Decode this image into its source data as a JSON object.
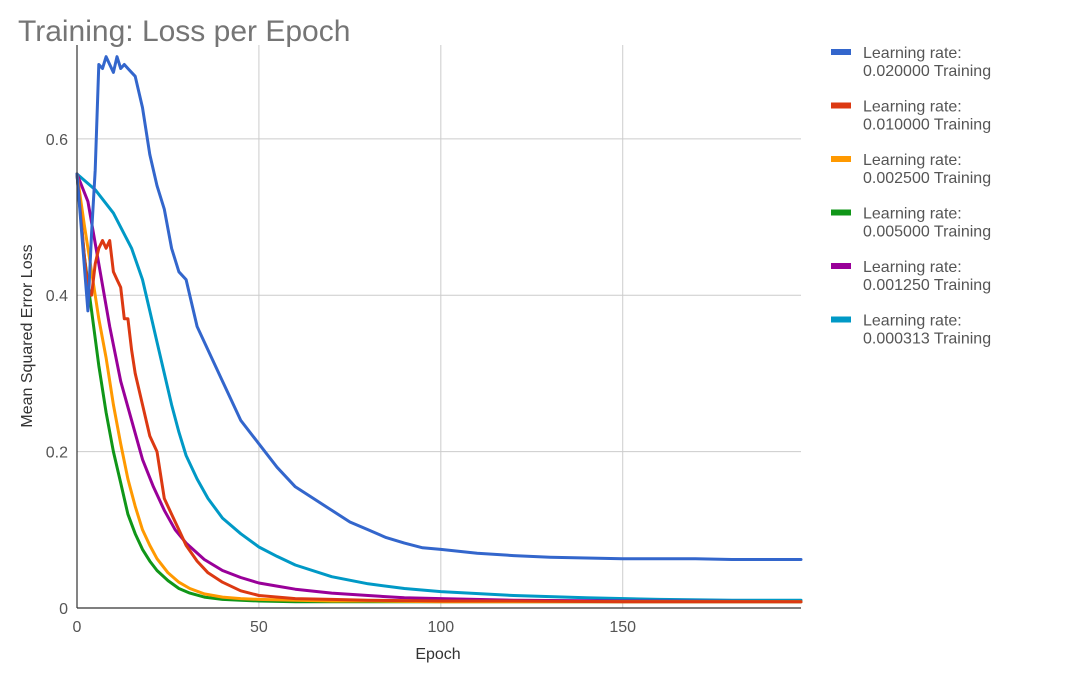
{
  "chart_data": {
    "type": "line",
    "title": "Training: Loss per Epoch",
    "xlabel": "Epoch",
    "ylabel": "Mean Squared Error Loss",
    "xlim": [
      0,
      199
    ],
    "ylim": [
      0,
      0.72
    ],
    "x_ticks": [
      "0",
      "50",
      "100",
      "150"
    ],
    "x_tick_values": [
      0,
      50,
      100,
      150
    ],
    "y_ticks": [
      "0",
      "0.2",
      "0.4",
      "0.6"
    ],
    "y_tick_values": [
      0,
      0.2,
      0.4,
      0.6
    ],
    "grid": true,
    "legend_position": "right",
    "series": [
      {
        "name_line1": "Learning rate:",
        "name_line2": "0.020000 Training",
        "color": "#3366cc",
        "x": [
          0,
          3,
          4,
          5,
          6,
          7,
          8,
          9,
          10,
          11,
          12,
          13,
          14,
          16,
          18,
          20,
          22,
          24,
          26,
          28,
          30,
          33,
          36,
          40,
          45,
          50,
          55,
          60,
          65,
          70,
          75,
          80,
          85,
          90,
          95,
          100,
          110,
          120,
          130,
          140,
          150,
          160,
          170,
          180,
          190,
          199
        ],
        "y": [
          0.555,
          0.38,
          0.48,
          0.56,
          0.695,
          0.69,
          0.705,
          0.695,
          0.685,
          0.705,
          0.69,
          0.695,
          0.69,
          0.68,
          0.64,
          0.58,
          0.54,
          0.51,
          0.46,
          0.43,
          0.42,
          0.36,
          0.33,
          0.29,
          0.24,
          0.21,
          0.18,
          0.155,
          0.14,
          0.125,
          0.11,
          0.1,
          0.09,
          0.083,
          0.077,
          0.075,
          0.07,
          0.067,
          0.065,
          0.064,
          0.063,
          0.063,
          0.063,
          0.062,
          0.062,
          0.062
        ]
      },
      {
        "name_line1": "Learning rate:",
        "name_line2": "0.010000 Training",
        "color": "#dc3912",
        "x": [
          0,
          2,
          3,
          4,
          5,
          6,
          7,
          8,
          9,
          10,
          11,
          12,
          13,
          14,
          15,
          16,
          18,
          20,
          22,
          24,
          26,
          28,
          30,
          33,
          36,
          40,
          45,
          50,
          60,
          70,
          80,
          100,
          120,
          150,
          199
        ],
        "y": [
          0.555,
          0.45,
          0.41,
          0.4,
          0.44,
          0.46,
          0.47,
          0.46,
          0.47,
          0.43,
          0.42,
          0.41,
          0.37,
          0.37,
          0.33,
          0.3,
          0.26,
          0.22,
          0.2,
          0.14,
          0.12,
          0.1,
          0.08,
          0.06,
          0.045,
          0.033,
          0.022,
          0.016,
          0.012,
          0.011,
          0.01,
          0.009,
          0.009,
          0.008,
          0.008
        ]
      },
      {
        "name_line1": "Learning rate:",
        "name_line2": "0.002500 Training",
        "color": "#ff9900",
        "x": [
          0,
          2,
          4,
          6,
          8,
          10,
          12,
          14,
          16,
          18,
          20,
          22,
          25,
          28,
          31,
          35,
          40,
          45,
          50,
          60,
          70,
          80,
          100,
          199
        ],
        "y": [
          0.555,
          0.49,
          0.43,
          0.37,
          0.32,
          0.26,
          0.21,
          0.165,
          0.13,
          0.1,
          0.08,
          0.063,
          0.045,
          0.033,
          0.025,
          0.018,
          0.014,
          0.012,
          0.011,
          0.01,
          0.009,
          0.009,
          0.008,
          0.008
        ]
      },
      {
        "name_line1": "Learning rate:",
        "name_line2": "0.005000 Training",
        "color": "#109618",
        "x": [
          0,
          2,
          4,
          6,
          8,
          10,
          12,
          14,
          16,
          18,
          20,
          22,
          25,
          28,
          31,
          35,
          40,
          45,
          50,
          60,
          70,
          80,
          100,
          199
        ],
        "y": [
          0.555,
          0.45,
          0.38,
          0.31,
          0.25,
          0.2,
          0.16,
          0.12,
          0.095,
          0.075,
          0.06,
          0.048,
          0.035,
          0.025,
          0.019,
          0.014,
          0.011,
          0.01,
          0.009,
          0.008,
          0.008,
          0.008,
          0.008,
          0.008
        ]
      },
      {
        "name_line1": "Learning rate:",
        "name_line2": "0.001250 Training",
        "color": "#990099",
        "x": [
          0,
          3,
          6,
          9,
          12,
          15,
          18,
          21,
          24,
          27,
          30,
          35,
          40,
          45,
          50,
          55,
          60,
          70,
          80,
          90,
          100,
          120,
          150,
          199
        ],
        "y": [
          0.555,
          0.52,
          0.44,
          0.36,
          0.29,
          0.24,
          0.19,
          0.155,
          0.125,
          0.1,
          0.083,
          0.062,
          0.048,
          0.039,
          0.032,
          0.028,
          0.024,
          0.019,
          0.016,
          0.013,
          0.012,
          0.01,
          0.009,
          0.008
        ]
      },
      {
        "name_line1": "Learning rate:",
        "name_line2": "0.000313 Training",
        "color": "#0099c6",
        "x": [
          0,
          5,
          10,
          15,
          18,
          20,
          22,
          24,
          26,
          28,
          30,
          33,
          36,
          40,
          45,
          50,
          55,
          60,
          70,
          80,
          90,
          100,
          120,
          140,
          160,
          180,
          199
        ],
        "y": [
          0.555,
          0.535,
          0.505,
          0.46,
          0.42,
          0.38,
          0.34,
          0.3,
          0.26,
          0.225,
          0.195,
          0.165,
          0.14,
          0.115,
          0.095,
          0.078,
          0.066,
          0.055,
          0.04,
          0.031,
          0.025,
          0.021,
          0.016,
          0.013,
          0.011,
          0.01,
          0.01
        ]
      }
    ]
  }
}
